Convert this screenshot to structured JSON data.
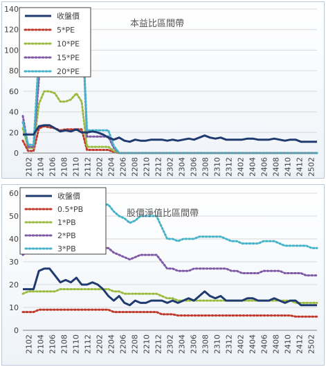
{
  "chart_data": [
    {
      "type": "line",
      "title": "本益比區間帶",
      "ylim": [
        0,
        140
      ],
      "yticks": [
        "0",
        "20",
        "40",
        "60",
        "80",
        "100",
        "120",
        "140"
      ],
      "xticks": [
        "2102",
        "2104",
        "2106",
        "2108",
        "2110",
        "2112",
        "2202",
        "2204",
        "2206",
        "2208",
        "2210",
        "2212",
        "2302",
        "2304",
        "2306",
        "2308",
        "2310",
        "2312",
        "2402",
        "2404",
        "2406",
        "2408",
        "2410",
        "2412",
        "2502"
      ],
      "legend": [
        "收盤價",
        "5*PE",
        "10*PE",
        "15*PE",
        "20*PE"
      ],
      "colors": [
        "#1f3a6e",
        "#c0392b",
        "#9bbb3f",
        "#7e5aa6",
        "#45b3c8"
      ],
      "series": [
        {
          "name": "收盤價",
          "values": [
            18,
            18,
            18,
            26,
            27,
            27,
            24,
            21,
            22,
            21,
            23,
            20,
            20,
            21,
            20,
            18,
            15,
            13,
            15,
            12,
            11,
            13,
            12,
            12,
            13,
            13,
            13,
            12,
            13,
            12,
            13,
            14,
            13,
            15,
            17,
            15,
            14,
            15,
            13,
            13,
            13,
            13,
            14,
            14,
            13,
            13,
            13,
            14,
            13,
            12,
            13,
            13,
            11,
            11,
            11,
            11
          ]
        },
        {
          "name": "5*PE",
          "values": [
            12,
            2,
            2,
            24,
            26,
            25,
            24,
            22,
            23,
            23,
            23,
            23,
            3,
            3,
            3,
            3,
            3,
            1,
            0,
            0,
            0,
            0,
            0,
            0,
            0,
            0,
            0,
            0,
            0,
            0,
            0,
            0,
            0,
            0,
            0,
            0,
            0,
            0,
            0,
            0,
            0,
            0,
            0,
            0,
            0,
            0,
            0,
            0,
            0,
            0,
            0,
            0,
            0,
            0,
            0,
            0
          ]
        },
        {
          "name": "10*PE",
          "values": [
            24,
            5,
            5,
            48,
            60,
            60,
            58,
            50,
            50,
            52,
            58,
            50,
            6,
            6,
            6,
            6,
            6,
            2,
            0,
            0,
            0,
            0,
            0,
            0,
            0,
            0,
            0,
            0,
            0,
            0,
            0,
            0,
            0,
            0,
            0,
            0,
            0,
            0,
            0,
            0,
            0,
            0,
            0,
            0,
            0,
            0,
            0,
            0,
            0,
            0,
            0,
            0,
            0,
            0,
            0,
            0
          ]
        },
        {
          "name": "15*PE",
          "values": [
            36,
            6,
            6,
            72,
            140,
            140,
            140,
            140,
            140,
            140,
            140,
            140,
            16,
            16,
            16,
            16,
            16,
            5,
            0,
            0,
            0,
            0,
            0,
            0,
            0,
            0,
            0,
            0,
            0,
            0,
            0,
            0,
            0,
            0,
            0,
            0,
            0,
            0,
            0,
            0,
            0,
            0,
            0,
            0,
            0,
            0,
            0,
            0,
            0,
            0,
            0,
            0,
            0,
            0,
            0,
            0
          ]
        },
        {
          "name": "20*PE",
          "values": [
            30,
            8,
            8,
            96,
            140,
            140,
            140,
            140,
            140,
            140,
            140,
            140,
            22,
            22,
            22,
            22,
            22,
            7,
            0,
            0,
            0,
            0,
            0,
            0,
            0,
            0,
            0,
            0,
            0,
            0,
            0,
            0,
            0,
            0,
            0,
            0,
            0,
            0,
            0,
            0,
            0,
            0,
            0,
            0,
            0,
            0,
            0,
            0,
            0,
            0,
            0,
            0,
            0,
            0,
            0,
            0
          ]
        }
      ]
    },
    {
      "type": "line",
      "title": "股價淨值比區間帶",
      "ylim": [
        0,
        60
      ],
      "yticks": [
        "0",
        "10",
        "20",
        "30",
        "40",
        "50",
        "60"
      ],
      "xticks": [
        "2102",
        "2104",
        "2106",
        "2108",
        "2110",
        "2112",
        "2202",
        "2204",
        "2206",
        "2208",
        "2210",
        "2212",
        "2302",
        "2304",
        "2306",
        "2308",
        "2310",
        "2312",
        "2402",
        "2404",
        "2406",
        "2408",
        "2410",
        "2412",
        "2502"
      ],
      "legend": [
        "收盤價",
        "0.5*PB",
        "1*PB",
        "2*PB",
        "3*PB"
      ],
      "colors": [
        "#1f3a6e",
        "#c0392b",
        "#9bbb3f",
        "#7e5aa6",
        "#45b3c8"
      ],
      "series": [
        {
          "name": "收盤價",
          "values": [
            18,
            18,
            18,
            26,
            27,
            27,
            24,
            21,
            22,
            21,
            23,
            20,
            20,
            21,
            20,
            18,
            15,
            13,
            15,
            12,
            11,
            13,
            12,
            12,
            13,
            13,
            13,
            12,
            13,
            12,
            13,
            14,
            13,
            15,
            17,
            15,
            14,
            15,
            13,
            13,
            13,
            13,
            14,
            14,
            13,
            13,
            13,
            14,
            13,
            12,
            13,
            13,
            11,
            11,
            11,
            11
          ]
        },
        {
          "name": "0.5*PB",
          "values": [
            8,
            8,
            8,
            9,
            9,
            9,
            9,
            9,
            9,
            9,
            9,
            9,
            9,
            9,
            9,
            9,
            9,
            8,
            8,
            8,
            8,
            8,
            8,
            8,
            8,
            8,
            7,
            7,
            7,
            6.5,
            6.5,
            6.5,
            6.5,
            6.5,
            6.5,
            6.5,
            6.5,
            6.5,
            6.5,
            6.5,
            6.5,
            6.5,
            6.5,
            6.5,
            6.5,
            6.5,
            6.5,
            6.5,
            6.5,
            6.5,
            6.5,
            6,
            6,
            6,
            6,
            6
          ]
        },
        {
          "name": "1*PB",
          "values": [
            16,
            17,
            17,
            17,
            17,
            17,
            17,
            18,
            18,
            18,
            18,
            18,
            18,
            18,
            18,
            18,
            18,
            17,
            17,
            16,
            16,
            16,
            16,
            16,
            16,
            16,
            15,
            14,
            14,
            13,
            13,
            13,
            13,
            13,
            13,
            13,
            13,
            13,
            13,
            13,
            13,
            13,
            13,
            13,
            13,
            13,
            13,
            13,
            13,
            13,
            13,
            12,
            12,
            12,
            12,
            12
          ]
        },
        {
          "name": "2*PB",
          "values": [
            33,
            35,
            35,
            35,
            35,
            35,
            35,
            35,
            35,
            36,
            36,
            36,
            36,
            36,
            36,
            36,
            36,
            34,
            33,
            32,
            31,
            32,
            33,
            33,
            33,
            33,
            30,
            27,
            27,
            26,
            26,
            26,
            27,
            27,
            27,
            27,
            27,
            27,
            27,
            26,
            26,
            25,
            25,
            25,
            25,
            26,
            26,
            26,
            26,
            25,
            25,
            25,
            25,
            24,
            24,
            24
          ]
        },
        {
          "name": "3*PB",
          "values": [
            50,
            52,
            52,
            52,
            53,
            53,
            53,
            53,
            54,
            54,
            54,
            55,
            55,
            55,
            55,
            55,
            55,
            52,
            50,
            49,
            47,
            48,
            50,
            50,
            50,
            50,
            45,
            40,
            40,
            39,
            40,
            40,
            40,
            41,
            41,
            41,
            41,
            41,
            40,
            39,
            39,
            38,
            38,
            38,
            38,
            39,
            39,
            39,
            38,
            37,
            37,
            37,
            37,
            37,
            36,
            36
          ]
        }
      ]
    }
  ]
}
